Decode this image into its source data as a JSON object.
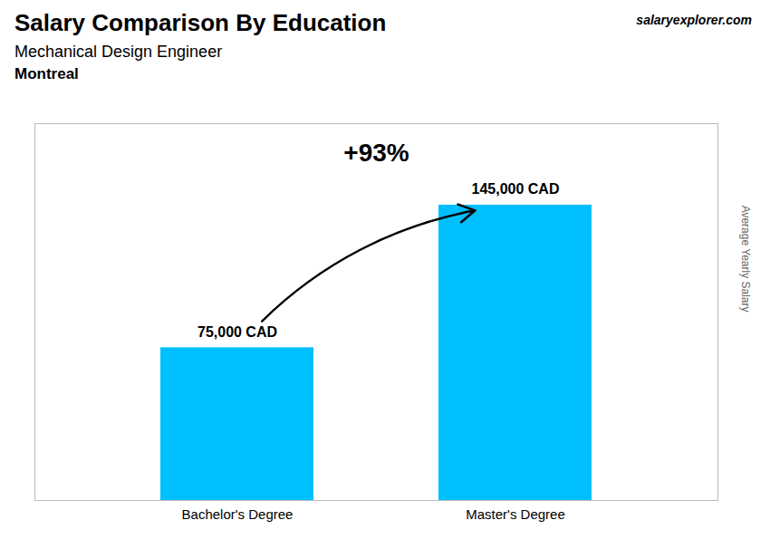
{
  "chart_data": {
    "type": "bar",
    "title": "Salary Comparison By Education",
    "subtitle": "Mechanical Design Engineer",
    "annotations": [
      "Montreal",
      "+93%",
      "salaryexplorer.com"
    ],
    "ylabel": "Average Yearly Salary",
    "categories": [
      "Bachelor's Degree",
      "Master's Degree"
    ],
    "values": [
      75000,
      145000
    ],
    "value_labels": [
      "75,000 CAD",
      "145,000 CAD"
    ],
    "data_labels": true,
    "color": "#00BFFF",
    "ylim": [
      0,
      185000
    ],
    "grid": false,
    "tick_labels": "x"
  }
}
